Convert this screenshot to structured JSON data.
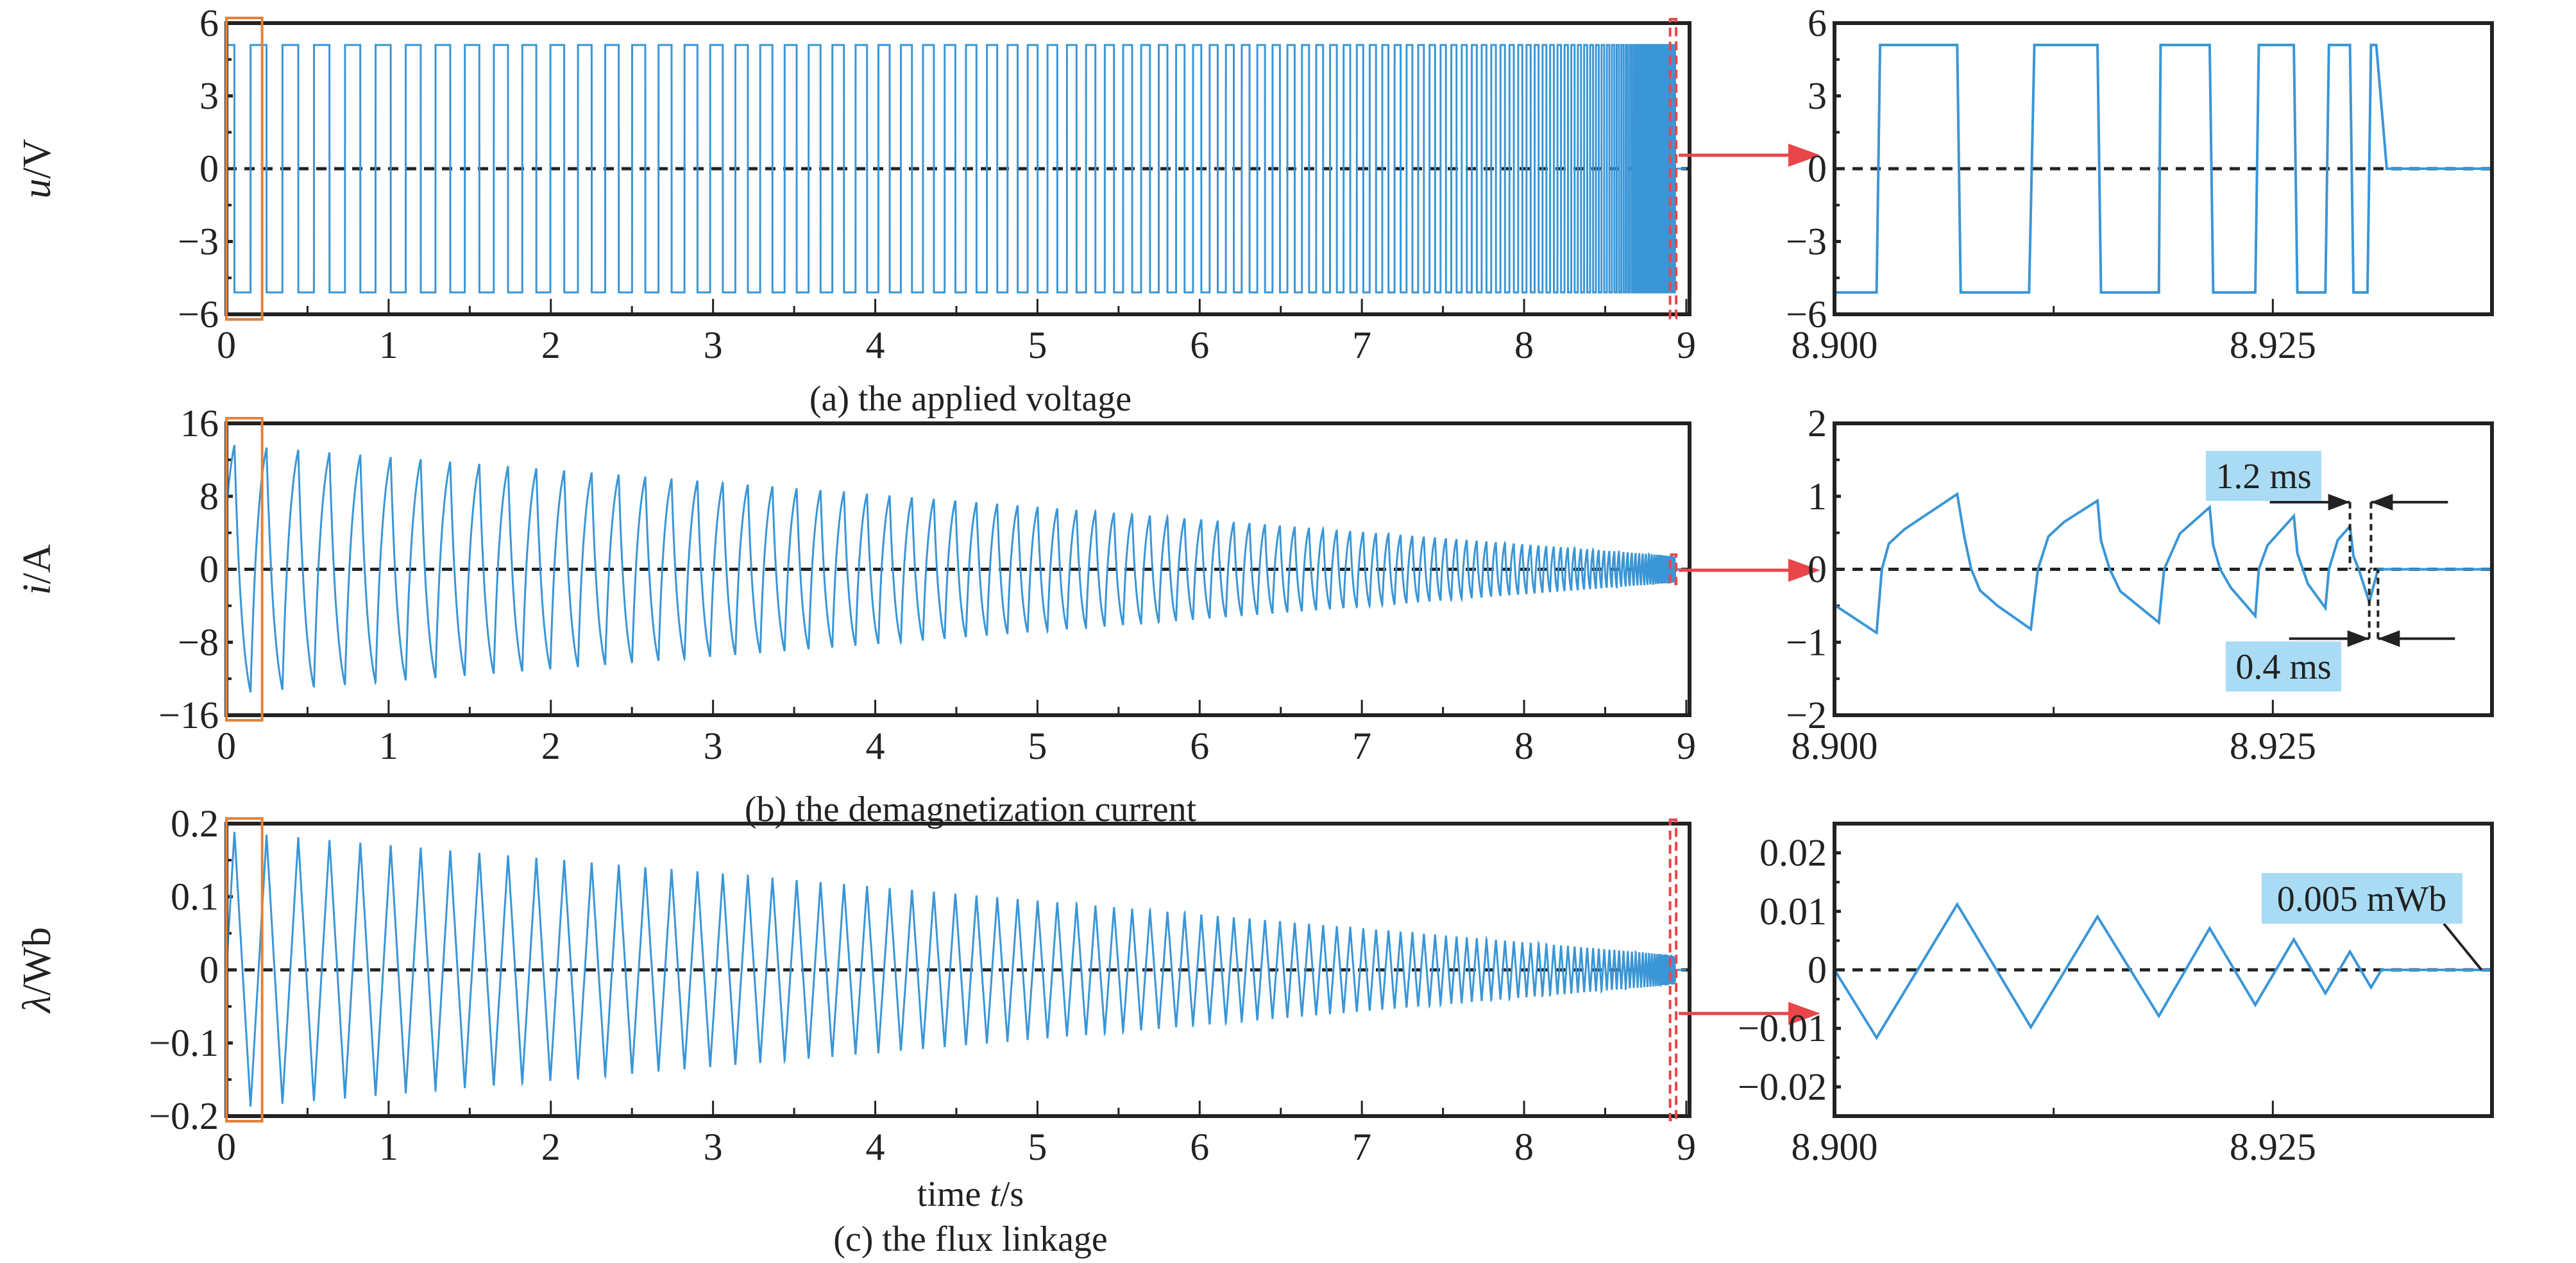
{
  "chart_data": [
    {
      "type": "line",
      "id": "voltage",
      "caption": "(a) the applied voltage",
      "ylabel_var": "u",
      "ylabel_unit": "/V",
      "xlim": [
        0,
        9.02
      ],
      "ylim": [
        -6,
        6
      ],
      "xticks": [
        "0",
        "1",
        "2",
        "3",
        "4",
        "5",
        "6",
        "7",
        "8",
        "9"
      ],
      "yticks": [
        "6",
        "3",
        "0",
        "−3",
        "−6"
      ],
      "ytick_values": [
        6,
        3,
        0,
        -3,
        -6
      ],
      "signal": {
        "kind": "square",
        "amplitude": 5.1,
        "f0_hz": 5,
        "t_end_s": 8.931,
        "chirp_exp": 0.6
      },
      "inset": {
        "xlim": [
          8.9,
          8.9375
        ],
        "ylim": [
          -6,
          6
        ],
        "xticks": [
          "8.900",
          "8.925"
        ],
        "xtick_values": [
          8.9,
          8.925
        ],
        "yticks": [
          "6",
          "3",
          "0",
          "−3",
          "−6"
        ],
        "ytick_values": [
          6,
          3,
          0,
          -3,
          -6
        ],
        "points": [
          [
            8.9,
            -5.1
          ],
          [
            8.9024,
            -5.1
          ],
          [
            8.9026,
            5.1
          ],
          [
            8.907,
            5.1
          ],
          [
            8.9072,
            -5.1
          ],
          [
            8.9111,
            -5.1
          ],
          [
            8.9114,
            5.1
          ],
          [
            8.915,
            5.1
          ],
          [
            8.9152,
            -5.1
          ],
          [
            8.9185,
            -5.1
          ],
          [
            8.9186,
            5.1
          ],
          [
            8.9214,
            5.1
          ],
          [
            8.9216,
            -5.1
          ],
          [
            8.924,
            -5.1
          ],
          [
            8.9242,
            5.1
          ],
          [
            8.9262,
            5.1
          ],
          [
            8.9264,
            -5.1
          ],
          [
            8.928,
            -5.1
          ],
          [
            8.9282,
            5.1
          ],
          [
            8.9294,
            5.1
          ],
          [
            8.9296,
            -5.1
          ],
          [
            8.9304,
            -5.1
          ],
          [
            8.9306,
            5.1
          ],
          [
            8.9309,
            5.1
          ],
          [
            8.9315,
            0
          ],
          [
            8.9375,
            0
          ]
        ]
      }
    },
    {
      "type": "line",
      "id": "current",
      "caption": "(b) the demagnetization current",
      "ylabel_var": "i",
      "ylabel_unit": "/A",
      "xlim": [
        0,
        9.02
      ],
      "ylim": [
        -16,
        16
      ],
      "xticks": [
        "0",
        "1",
        "2",
        "3",
        "4",
        "5",
        "6",
        "7",
        "8",
        "9"
      ],
      "yticks": [
        "16",
        "8",
        "0",
        "−8",
        "−16"
      ],
      "ytick_values": [
        16,
        8,
        0,
        -8,
        -16
      ],
      "signal": {
        "kind": "sawtooth",
        "amplitude": 13.7,
        "f0_hz": 5,
        "t_end_s": 8.931,
        "chirp_exp": 0.6
      },
      "inset": {
        "xlim": [
          8.9,
          8.9375
        ],
        "ylim": [
          -2,
          2
        ],
        "xticks": [
          "8.900",
          "8.925"
        ],
        "xtick_values": [
          8.9,
          8.925
        ],
        "yticks": [
          "2",
          "1",
          "0",
          "−1",
          "−2"
        ],
        "ytick_values": [
          2,
          1,
          0,
          -1,
          -2
        ],
        "points": [
          [
            8.9,
            -0.49
          ],
          [
            8.9024,
            -0.87
          ],
          [
            8.9027,
            0
          ],
          [
            8.9031,
            0.35
          ],
          [
            8.904,
            0.55
          ],
          [
            8.907,
            1.03
          ],
          [
            8.9074,
            0.45
          ],
          [
            8.9078,
            0
          ],
          [
            8.9083,
            -0.29
          ],
          [
            8.9093,
            -0.5
          ],
          [
            8.9112,
            -0.82
          ],
          [
            8.9116,
            0
          ],
          [
            8.9122,
            0.45
          ],
          [
            8.9131,
            0.65
          ],
          [
            8.915,
            0.94
          ],
          [
            8.9152,
            0.39
          ],
          [
            8.9157,
            0
          ],
          [
            8.9163,
            -0.3
          ],
          [
            8.9185,
            -0.73
          ],
          [
            8.9188,
            0
          ],
          [
            8.9197,
            0.49
          ],
          [
            8.9214,
            0.85
          ],
          [
            8.9216,
            0.33
          ],
          [
            8.922,
            0
          ],
          [
            8.9226,
            -0.25
          ],
          [
            8.924,
            -0.64
          ],
          [
            8.9242,
            0
          ],
          [
            8.9247,
            0.33
          ],
          [
            8.9262,
            0.73
          ],
          [
            8.9264,
            0.22
          ],
          [
            8.927,
            -0.2
          ],
          [
            8.928,
            -0.53
          ],
          [
            8.9282,
            0
          ],
          [
            8.9287,
            0.4
          ],
          [
            8.9294,
            0.59
          ],
          [
            8.9296,
            0.18
          ],
          [
            8.9299,
            0
          ],
          [
            8.9305,
            -0.45
          ],
          [
            8.931,
            0
          ],
          [
            8.9375,
            0
          ]
        ],
        "annotations": [
          {
            "label": "1.2 ms",
            "t1": 8.9294,
            "t2": 8.9306,
            "y": 0.92
          },
          {
            "label": "0.4 ms",
            "t1": 8.9305,
            "t2": 8.931,
            "y": -0.95
          }
        ]
      }
    },
    {
      "type": "line",
      "id": "flux",
      "caption": "(c) the flux linkage",
      "xlabel_prefix": "time ",
      "xlabel_var": "t",
      "xlabel_unit": "/s",
      "ylabel_var": "λ",
      "ylabel_unit": "/Wb",
      "xlim": [
        0,
        9.02
      ],
      "ylim": [
        -0.2,
        0.2
      ],
      "xticks": [
        "0",
        "1",
        "2",
        "3",
        "4",
        "5",
        "6",
        "7",
        "8",
        "9"
      ],
      "yticks": [
        "0.2",
        "0.1",
        "0",
        "−0.1",
        "−0.2"
      ],
      "ytick_values": [
        0.2,
        0.1,
        0,
        -0.1,
        -0.2
      ],
      "signal": {
        "kind": "triangle",
        "amplitude": 0.19,
        "f0_hz": 5,
        "t_end_s": 8.931,
        "chirp_exp": 0.6
      },
      "inset": {
        "xlim": [
          8.9,
          8.9375
        ],
        "ylim": [
          -0.025,
          0.025
        ],
        "xticks": [
          "8.900",
          "8.925"
        ],
        "xtick_values": [
          8.9,
          8.925
        ],
        "yticks": [
          "0.02",
          "0.01",
          "0",
          "−0.01",
          "−0.02"
        ],
        "ytick_values": [
          0.02,
          0.01,
          0,
          -0.01,
          -0.02
        ],
        "points": [
          [
            8.9,
            0
          ],
          [
            8.9024,
            -0.0116
          ],
          [
            8.907,
            0.0112
          ],
          [
            8.9112,
            -0.0098
          ],
          [
            8.915,
            0.0091
          ],
          [
            8.9185,
            -0.0079
          ],
          [
            8.9214,
            0.0071
          ],
          [
            8.924,
            -0.006
          ],
          [
            8.9262,
            0.0052
          ],
          [
            8.928,
            -0.004
          ],
          [
            8.9294,
            0.0031
          ],
          [
            8.9306,
            -0.003
          ],
          [
            8.9312,
            0
          ],
          [
            8.9375,
            0
          ]
        ],
        "annotations": [
          {
            "label": "0.005 mWb"
          }
        ]
      }
    }
  ],
  "colors": {
    "line": "#3a96d6",
    "zoom_box_start": "#e0823c",
    "zoom_box_end": "#e8464a",
    "annotation_bg": "#a9dcf4",
    "axis": "#222222"
  }
}
